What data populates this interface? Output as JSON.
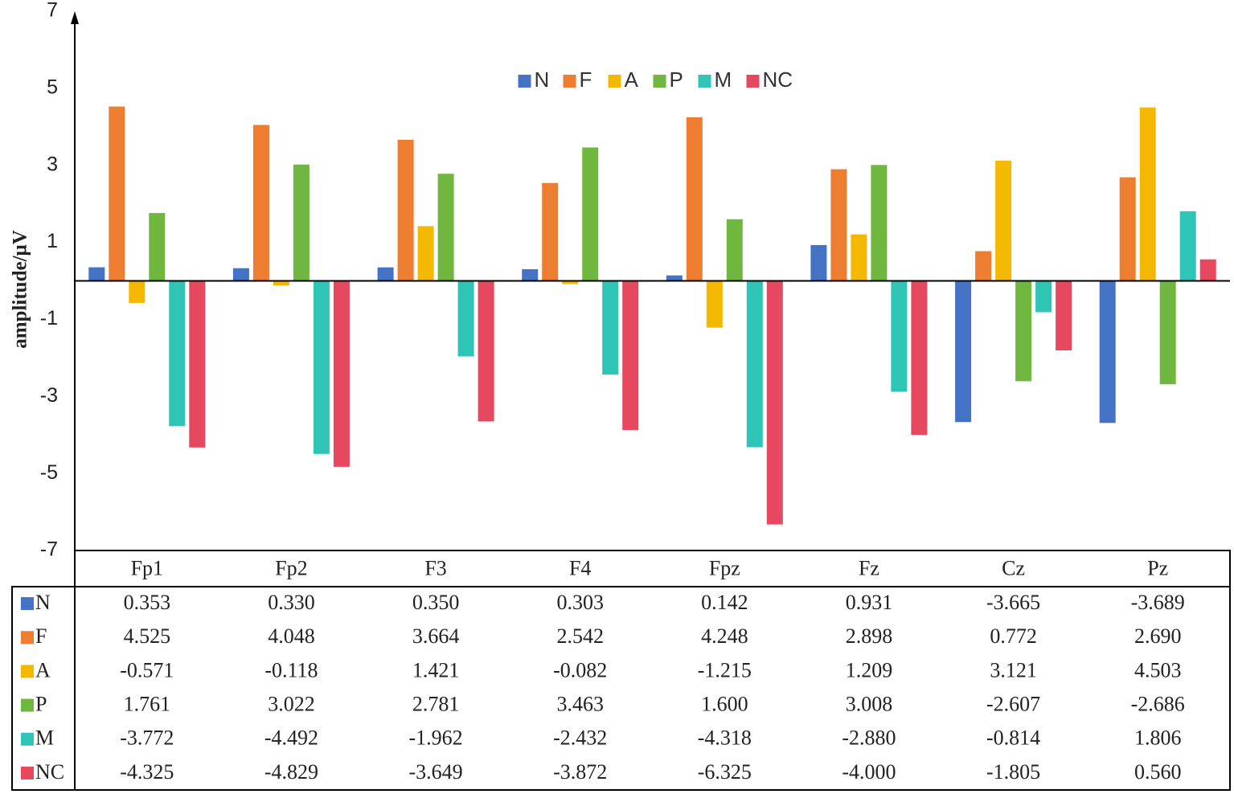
{
  "chart_data": {
    "type": "bar",
    "title": "",
    "xlabel": "",
    "ylabel": "amplitude/μV",
    "ylim": [
      -7,
      7
    ],
    "yticks": [
      7,
      5,
      3,
      1,
      -1,
      -3,
      -5,
      -7
    ],
    "grid": false,
    "legend_position": "top-center",
    "categories": [
      "Fp1",
      "Fp2",
      "F3",
      "F4",
      "Fpz",
      "Fz",
      "Cz",
      "Pz"
    ],
    "series": [
      {
        "name": "N",
        "color": "#4472C4",
        "values": [
          0.353,
          0.33,
          0.35,
          0.303,
          0.142,
          0.931,
          -3.665,
          -3.689
        ]
      },
      {
        "name": "F",
        "color": "#ED7D31",
        "values": [
          4.525,
          4.048,
          3.664,
          2.542,
          4.248,
          2.898,
          0.772,
          2.69
        ]
      },
      {
        "name": "A",
        "color": "#F5B800",
        "values": [
          -0.571,
          -0.118,
          1.421,
          -0.082,
          -1.215,
          1.209,
          3.121,
          4.503
        ]
      },
      {
        "name": "P",
        "color": "#70B73F",
        "values": [
          1.761,
          3.022,
          2.781,
          3.463,
          1.6,
          3.008,
          -2.607,
          -2.686
        ]
      },
      {
        "name": "M",
        "color": "#2EC4B6",
        "values": [
          -3.772,
          -4.492,
          -1.962,
          -2.432,
          -4.318,
          -2.88,
          -0.814,
          1.806
        ]
      },
      {
        "name": "NC",
        "color": "#E5485F",
        "values": [
          -4.325,
          -4.829,
          -3.649,
          -3.872,
          -6.325,
          -4.0,
          -1.805,
          0.56
        ]
      }
    ],
    "table": {
      "rows": [
        {
          "name": "N",
          "cells": [
            "0.353",
            "0.330",
            "0.350",
            "0.303",
            "0.142",
            "0.931",
            "-3.665",
            "-3.689"
          ]
        },
        {
          "name": "F",
          "cells": [
            "4.525",
            "4.048",
            "3.664",
            "2.542",
            "4.248",
            "2.898",
            "0.772",
            "2.690"
          ]
        },
        {
          "name": "A",
          "cells": [
            "-0.571",
            "-0.118",
            "1.421",
            "-0.082",
            "-1.215",
            "1.209",
            "3.121",
            "4.503"
          ]
        },
        {
          "name": "P",
          "cells": [
            "1.761",
            "3.022",
            "2.781",
            "3.463",
            "1.600",
            "3.008",
            "-2.607",
            "-2.686"
          ]
        },
        {
          "name": "M",
          "cells": [
            "-3.772",
            "-4.492",
            "-1.962",
            "-2.432",
            "-4.318",
            "-2.880",
            "-0.814",
            "1.806"
          ]
        },
        {
          "name": "NC",
          "cells": [
            "-4.325",
            "-4.829",
            "-3.649",
            "-3.872",
            "-6.325",
            "-4.000",
            "-1.805",
            "0.560"
          ]
        }
      ]
    }
  }
}
